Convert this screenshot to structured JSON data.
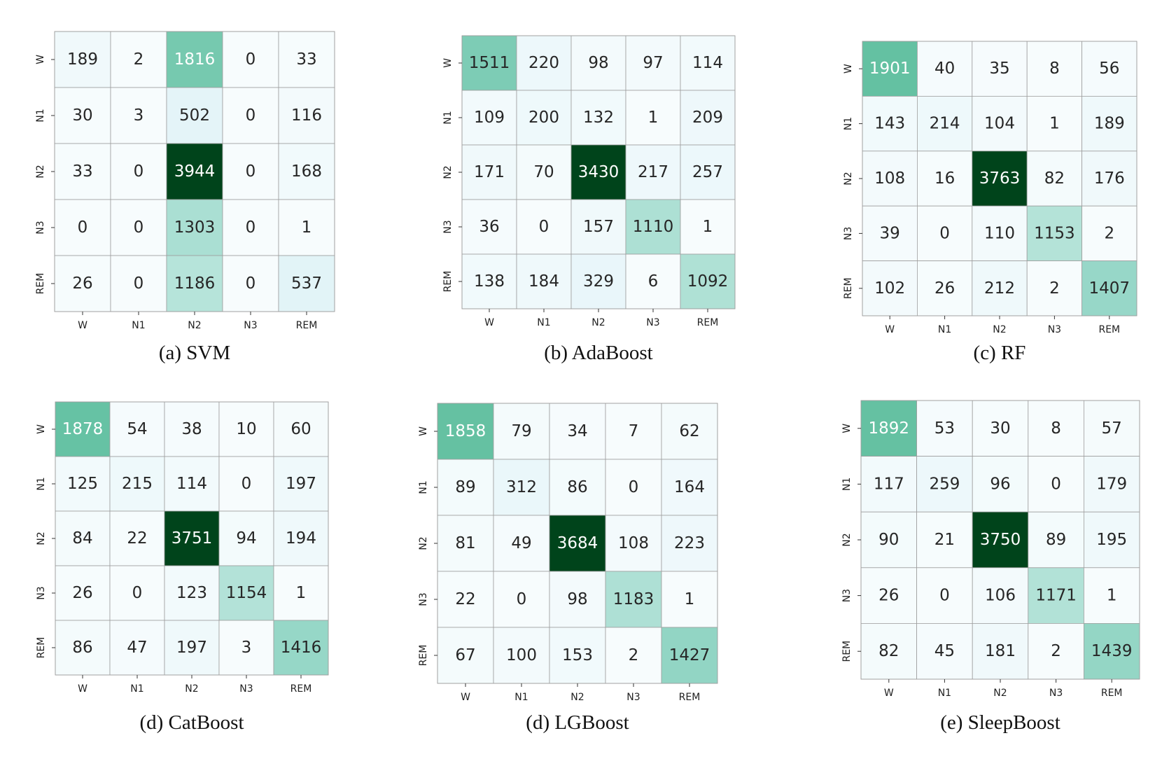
{
  "colors": {
    "low": "#f7fcfd",
    "mid": "#66c2a4",
    "high": "#00441b",
    "grid": "#9e9e9e",
    "light_text": "#ffffff",
    "dark_text": "#262626"
  },
  "chart_data": [
    {
      "type": "heatmap",
      "caption": "(a) SVM",
      "x_labels": [
        "W",
        "N1",
        "N2",
        "N3",
        "REM"
      ],
      "y_labels": [
        "W",
        "N1",
        "N2",
        "N3",
        "REM"
      ],
      "values": [
        [
          189,
          2,
          1816,
          0,
          33
        ],
        [
          30,
          3,
          502,
          0,
          116
        ],
        [
          33,
          0,
          3944,
          0,
          168
        ],
        [
          0,
          0,
          1303,
          0,
          1
        ],
        [
          26,
          0,
          1186,
          0,
          537
        ]
      ]
    },
    {
      "type": "heatmap",
      "caption": "(b) AdaBoost",
      "x_labels": [
        "W",
        "N1",
        "N2",
        "N3",
        "REM"
      ],
      "y_labels": [
        "W",
        "N1",
        "N2",
        "N3",
        "REM"
      ],
      "values": [
        [
          1511,
          220,
          98,
          97,
          114
        ],
        [
          109,
          200,
          132,
          1,
          209
        ],
        [
          171,
          70,
          3430,
          217,
          257
        ],
        [
          36,
          0,
          157,
          1110,
          1
        ],
        [
          138,
          184,
          329,
          6,
          1092
        ]
      ]
    },
    {
      "type": "heatmap",
      "caption": "(c) RF",
      "x_labels": [
        "W",
        "N1",
        "N2",
        "N3",
        "REM"
      ],
      "y_labels": [
        "W",
        "N1",
        "N2",
        "N3",
        "REM"
      ],
      "values": [
        [
          1901,
          40,
          35,
          8,
          56
        ],
        [
          143,
          214,
          104,
          1,
          189
        ],
        [
          108,
          16,
          3763,
          82,
          176
        ],
        [
          39,
          0,
          110,
          1153,
          2
        ],
        [
          102,
          26,
          212,
          2,
          1407
        ]
      ]
    },
    {
      "type": "heatmap",
      "caption": "(d) CatBoost",
      "x_labels": [
        "W",
        "N1",
        "N2",
        "N3",
        "REM"
      ],
      "y_labels": [
        "W",
        "N1",
        "N2",
        "N3",
        "REM"
      ],
      "values": [
        [
          1878,
          54,
          38,
          10,
          60
        ],
        [
          125,
          215,
          114,
          0,
          197
        ],
        [
          84,
          22,
          3751,
          94,
          194
        ],
        [
          26,
          0,
          123,
          1154,
          1
        ],
        [
          86,
          47,
          197,
          3,
          1416
        ]
      ]
    },
    {
      "type": "heatmap",
      "caption": "(d) LGBoost",
      "x_labels": [
        "W",
        "N1",
        "N2",
        "N3",
        "REM"
      ],
      "y_labels": [
        "W",
        "N1",
        "N2",
        "N3",
        "REM"
      ],
      "values": [
        [
          1858,
          79,
          34,
          7,
          62
        ],
        [
          89,
          312,
          86,
          0,
          164
        ],
        [
          81,
          49,
          3684,
          108,
          223
        ],
        [
          22,
          0,
          98,
          1183,
          1
        ],
        [
          67,
          100,
          153,
          2,
          1427
        ]
      ]
    },
    {
      "type": "heatmap",
      "caption": "(e) SleepBoost",
      "x_labels": [
        "W",
        "N1",
        "N2",
        "N3",
        "REM"
      ],
      "y_labels": [
        "W",
        "N1",
        "N2",
        "N3",
        "REM"
      ],
      "values": [
        [
          1892,
          53,
          30,
          8,
          57
        ],
        [
          117,
          259,
          96,
          0,
          179
        ],
        [
          90,
          21,
          3750,
          89,
          195
        ],
        [
          26,
          0,
          106,
          1171,
          1
        ],
        [
          82,
          45,
          181,
          2,
          1439
        ]
      ]
    }
  ]
}
